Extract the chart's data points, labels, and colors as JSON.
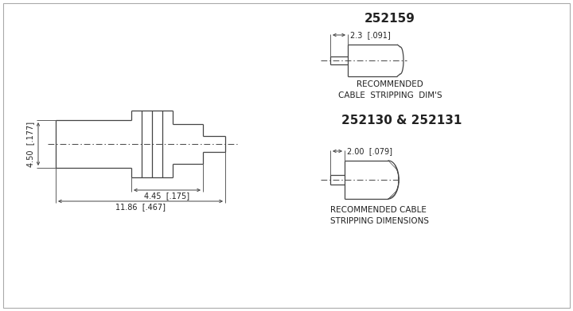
{
  "bg_color": "#ffffff",
  "line_color": "#444444",
  "text_color": "#222222",
  "title1": "252159",
  "title2": "252130 & 252131",
  "label1": "RECOMMENDED\nCABLE  STRIPPING  DIM'S",
  "label2": "RECOMMENDED CABLE\nSTRIPPING DIMENSIONS",
  "dim1_label": "2.3  [.091]",
  "dim2_label": "2.00  [.079]",
  "main_dim1": "4.50  [.177]",
  "main_dim2": "4.45  [.175]",
  "main_dim3": "11.86  [.467]"
}
